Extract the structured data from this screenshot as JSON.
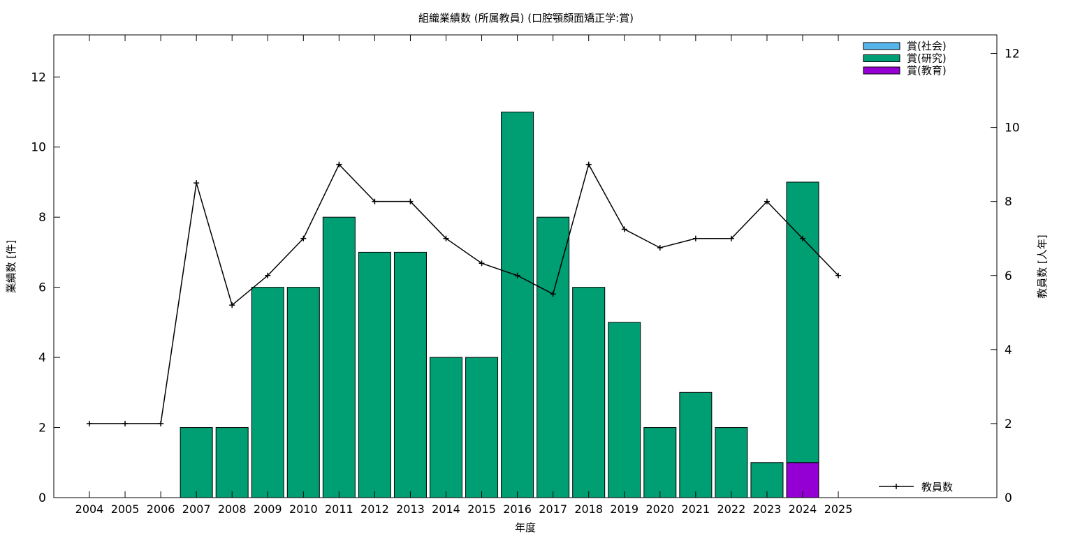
{
  "chart_data": {
    "type": "bar",
    "title": "組織業績数 (所属教員) (口腔顎顔面矯正学:賞)",
    "xlabel": "年度",
    "ylabel": "業績数 [件]",
    "y2label": "教員数 [人年]",
    "categories": [
      "2004",
      "2005",
      "2006",
      "2007",
      "2008",
      "2009",
      "2010",
      "2011",
      "2012",
      "2013",
      "2014",
      "2015",
      "2016",
      "2017",
      "2018",
      "2019",
      "2020",
      "2021",
      "2022",
      "2023",
      "2024",
      "2025"
    ],
    "ylim": [
      0,
      13.2
    ],
    "y2lim": [
      0,
      12.5
    ],
    "yticks": [
      0,
      2,
      4,
      6,
      8,
      10,
      12
    ],
    "y2ticks": [
      0,
      2,
      4,
      6,
      8,
      10,
      12
    ],
    "stacked": true,
    "series": [
      {
        "name": "賞(教育)",
        "color": "#9400d3",
        "values": [
          0,
          0,
          0,
          0,
          0,
          0,
          0,
          0,
          0,
          0,
          0,
          0,
          0,
          0,
          0,
          0,
          0,
          0,
          0,
          0,
          1,
          0
        ]
      },
      {
        "name": "賞(研究)",
        "color": "#009e73",
        "values": [
          0,
          0,
          0,
          2,
          2,
          6,
          6,
          8,
          7,
          7,
          4,
          4,
          11,
          8,
          6,
          5,
          2,
          3,
          2,
          1,
          8,
          0
        ]
      },
      {
        "name": "賞(社会)",
        "color": "#56b4e9",
        "values": [
          0,
          0,
          0,
          0,
          0,
          0,
          0,
          0,
          0,
          0,
          0,
          0,
          0,
          0,
          0,
          0,
          0,
          0,
          0,
          0,
          0,
          0
        ]
      }
    ],
    "line_series": {
      "name": "教員数",
      "axis": "y2",
      "color": "#000000",
      "values": [
        2,
        2,
        2,
        8.5,
        5.2,
        6,
        7,
        9,
        8,
        8,
        7,
        6.33,
        6,
        5.5,
        9,
        7.25,
        6.75,
        7,
        7,
        8,
        7,
        6
      ]
    },
    "legend_top": [
      "賞(社会)",
      "賞(研究)",
      "賞(教育)"
    ],
    "legend_bottom": [
      "教員数"
    ],
    "legend_placement": "top-right",
    "grid": false
  }
}
